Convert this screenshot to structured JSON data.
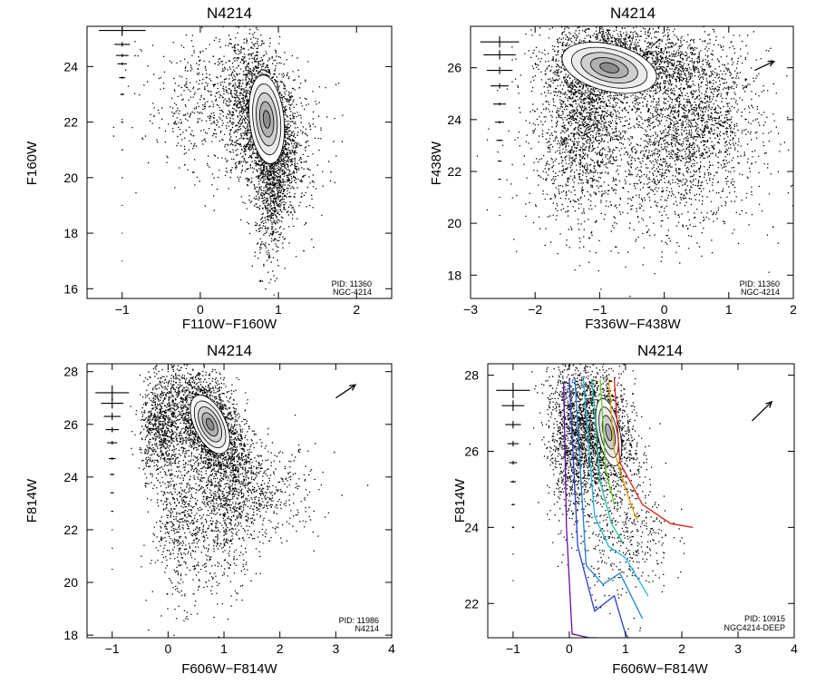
{
  "figure": "Four color-magnitude diagram panels",
  "chart_data": [
    {
      "type": "scatter",
      "title": "N4214",
      "xlabel": "F110W−F160W",
      "ylabel": "F160W",
      "xlim": [
        -1.45,
        2.45
      ],
      "ylim": [
        25.45,
        15.65
      ],
      "xticks": [
        -1,
        0,
        1,
        2
      ],
      "yticks": [
        16,
        18,
        20,
        22,
        24
      ],
      "pid_label": "PID: 11360",
      "target_label": "NGC-4214",
      "error_bars": {
        "x": -1,
        "mags": [
          17,
          18,
          19,
          20,
          21,
          22,
          23,
          23.6,
          24.1,
          24.4,
          24.8,
          25.3
        ],
        "xerr": [
          0.005,
          0.005,
          0.006,
          0.008,
          0.01,
          0.015,
          0.025,
          0.04,
          0.06,
          0.08,
          0.1,
          0.3
        ],
        "yerr": [
          0.01,
          0.01,
          0.01,
          0.01,
          0.02,
          0.02,
          0.03,
          0.04,
          0.05,
          0.06,
          0.08,
          0.2
        ]
      },
      "clouds": [
        {
          "cx": 0.82,
          "cy": 22.0,
          "sx": 0.22,
          "sy": 1.4,
          "rho": -0.45,
          "n": 2600
        },
        {
          "cx": 0.9,
          "cy": 19.6,
          "sx": 0.1,
          "sy": 1.4,
          "rho": 0.0,
          "n": 700
        },
        {
          "cx": 0.4,
          "cy": 22.3,
          "sx": 0.55,
          "sy": 1.3,
          "rho": -0.2,
          "n": 900
        }
      ],
      "contours": [
        {
          "cx": 0.85,
          "cy": 22.1,
          "rx": 0.22,
          "ry": 1.6,
          "rot": -0.1,
          "levels": 5
        }
      ],
      "reddening_arrow": null
    },
    {
      "type": "scatter",
      "title": "N4214",
      "xlabel": "F336W−F438W",
      "ylabel": "F438W",
      "xlim": [
        -3.0,
        2.0
      ],
      "ylim": [
        27.6,
        17.1
      ],
      "xticks": [
        -3,
        -2,
        -1,
        0,
        1,
        2
      ],
      "yticks": [
        18,
        20,
        22,
        24,
        26
      ],
      "pid_label": "PID: 11360",
      "target_label": "NGC-4214",
      "error_bars": {
        "x": -2.55,
        "mags": [
          20.3,
          21.0,
          21.7,
          22.4,
          23.2,
          23.9,
          24.6,
          25.3,
          25.9,
          26.5,
          27.0
        ],
        "xerr": [
          0.01,
          0.01,
          0.02,
          0.03,
          0.05,
          0.07,
          0.1,
          0.14,
          0.2,
          0.25,
          0.3
        ],
        "yerr": [
          0.01,
          0.01,
          0.02,
          0.02,
          0.03,
          0.05,
          0.06,
          0.1,
          0.14,
          0.18,
          0.22
        ]
      },
      "clouds": [
        {
          "cx": -1.2,
          "cy": 24.6,
          "sx": 0.35,
          "sy": 1.9,
          "rho": 0.3,
          "n": 2000
        },
        {
          "cx": -0.6,
          "cy": 26.2,
          "sx": 0.6,
          "sy": 0.7,
          "rho": 0.0,
          "n": 1800
        },
        {
          "cx": 0.4,
          "cy": 23.8,
          "sx": 0.5,
          "sy": 1.6,
          "rho": 0.2,
          "n": 1600
        },
        {
          "cx": -0.2,
          "cy": 22.5,
          "sx": 1.0,
          "sy": 1.8,
          "rho": 0.0,
          "n": 900
        }
      ],
      "contours": [
        {
          "cx": -0.85,
          "cy": 26.0,
          "rx": 0.75,
          "ry": 0.9,
          "rot": 0.25,
          "levels": 5
        }
      ],
      "reddening_arrow": {
        "x0": 1.4,
        "y0": 25.9,
        "dx": 0.3,
        "dy": 0.35
      }
    },
    {
      "type": "scatter",
      "title": "N4214",
      "xlabel": "F606W−F814W",
      "ylabel": "F814W",
      "xlim": [
        -1.45,
        4.0
      ],
      "ylim": [
        28.3,
        17.9
      ],
      "xticks": [
        -1,
        0,
        1,
        2,
        3,
        4
      ],
      "yticks": [
        18,
        20,
        22,
        24,
        26,
        28
      ],
      "pid_label": "PID: 11986",
      "target_label": "N4214",
      "error_bars": {
        "x": -1,
        "mags": [
          20.5,
          21.3,
          22.0,
          22.7,
          23.4,
          24.1,
          24.7,
          25.3,
          25.8,
          26.3,
          26.8,
          27.2
        ],
        "xerr": [
          0.01,
          0.01,
          0.01,
          0.02,
          0.03,
          0.04,
          0.06,
          0.09,
          0.12,
          0.15,
          0.2,
          0.3
        ],
        "yerr": [
          0.01,
          0.01,
          0.01,
          0.02,
          0.02,
          0.03,
          0.05,
          0.07,
          0.1,
          0.14,
          0.2,
          0.28
        ]
      },
      "clouds": [
        {
          "cx": 0.7,
          "cy": 26.0,
          "sx": 0.35,
          "sy": 1.1,
          "rho": -0.5,
          "n": 2400
        },
        {
          "cx": -0.15,
          "cy": 25.9,
          "sx": 0.18,
          "sy": 0.9,
          "rho": 0.0,
          "n": 700
        },
        {
          "cx": 0.2,
          "cy": 22.5,
          "sx": 0.25,
          "sy": 1.6,
          "rho": 0.0,
          "n": 600
        },
        {
          "cx": 1.0,
          "cy": 22.6,
          "sx": 0.3,
          "sy": 1.4,
          "rho": 0.2,
          "n": 600
        },
        {
          "cx": 1.6,
          "cy": 23.4,
          "sx": 0.55,
          "sy": 0.9,
          "rho": 0.0,
          "n": 500
        }
      ],
      "contours": [
        {
          "cx": 0.75,
          "cy": 26.0,
          "rx": 0.28,
          "ry": 1.2,
          "rot": -0.45,
          "levels": 5
        }
      ],
      "reddening_arrow": {
        "x0": 3.0,
        "y0": 27.0,
        "dx": 0.35,
        "dy": 0.5
      }
    },
    {
      "type": "scatter",
      "title": "N4214",
      "xlabel": "F606W−F814W",
      "ylabel": "F814W",
      "xlim": [
        -1.45,
        4.0
      ],
      "ylim": [
        28.3,
        21.1
      ],
      "xticks": [
        -1,
        0,
        1,
        2,
        3,
        4
      ],
      "yticks": [
        22,
        24,
        26,
        28
      ],
      "pid_label": "PID: 10915",
      "target_label": "NGC4214-DEEP",
      "error_bars": {
        "x": -1,
        "mags": [
          22.6,
          23.3,
          24.0,
          24.6,
          25.2,
          25.7,
          26.2,
          26.7,
          27.2,
          27.6
        ],
        "xerr": [
          0.01,
          0.01,
          0.02,
          0.03,
          0.05,
          0.07,
          0.1,
          0.14,
          0.2,
          0.3
        ],
        "yerr": [
          0.01,
          0.01,
          0.02,
          0.02,
          0.03,
          0.05,
          0.07,
          0.1,
          0.14,
          0.2
        ]
      },
      "clouds": [
        {
          "cx": 0.45,
          "cy": 26.6,
          "sx": 0.35,
          "sy": 0.9,
          "rho": -0.3,
          "n": 2200
        },
        {
          "cx": 0.0,
          "cy": 26.0,
          "sx": 0.2,
          "sy": 1.0,
          "rho": 0.0,
          "n": 600
        },
        {
          "cx": 1.0,
          "cy": 23.8,
          "sx": 0.4,
          "sy": 0.8,
          "rho": 0.0,
          "n": 400
        }
      ],
      "contours": [
        {
          "cx": 0.7,
          "cy": 26.5,
          "rx": 0.2,
          "ry": 0.9,
          "rot": -0.2,
          "levels": 4
        }
      ],
      "isochrones": [
        {
          "color": "#6a0dad",
          "x": [
            -0.1,
            -0.05,
            0.05,
            0.35,
            0.5
          ],
          "y": [
            27.8,
            24.0,
            21.2,
            21.1,
            21.1
          ]
        },
        {
          "color": "#2a3fcf",
          "x": [
            0.0,
            0.15,
            0.45,
            0.8,
            1.0,
            1.05
          ],
          "y": [
            27.9,
            23.5,
            21.8,
            22.2,
            21.2,
            21.1
          ]
        },
        {
          "color": "#1f7fd8",
          "x": [
            0.1,
            0.3,
            0.6,
            0.9,
            1.3
          ],
          "y": [
            27.9,
            23.0,
            22.5,
            22.8,
            21.6
          ]
        },
        {
          "color": "#1fb5e0",
          "x": [
            0.25,
            0.45,
            0.7,
            1.0,
            1.4
          ],
          "y": [
            27.9,
            24.3,
            23.5,
            23.2,
            22.2
          ]
        },
        {
          "color": "#20c8a0",
          "x": [
            0.4,
            0.55,
            0.75,
            0.95
          ],
          "y": [
            27.9,
            25.2,
            24.1,
            23.6
          ]
        },
        {
          "color": "#60d020",
          "x": [
            0.55,
            0.65,
            0.8
          ],
          "y": [
            27.9,
            25.5,
            24.6
          ]
        },
        {
          "color": "#e0a000",
          "x": [
            0.7,
            0.8,
            1.05,
            1.2
          ],
          "y": [
            27.9,
            26.0,
            24.8,
            24.2
          ]
        },
        {
          "color": "#e02010",
          "x": [
            0.8,
            0.9,
            1.3,
            1.8,
            2.2
          ],
          "y": [
            27.9,
            25.7,
            24.6,
            24.1,
            24.0
          ]
        }
      ],
      "reddening_arrow": {
        "x0": 3.25,
        "y0": 26.8,
        "dx": 0.35,
        "dy": 0.5
      }
    }
  ]
}
